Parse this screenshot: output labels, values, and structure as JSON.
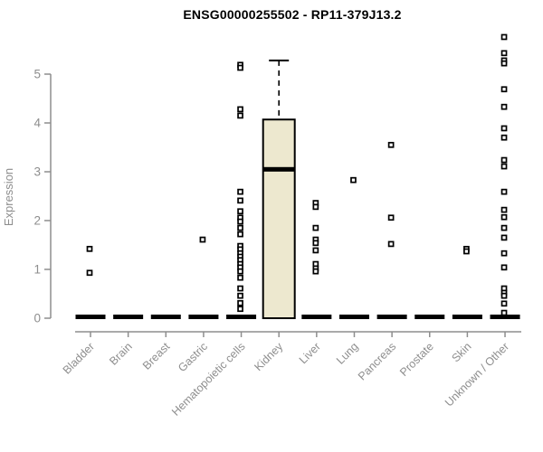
{
  "header": {
    "title": "ENSG00000255502 - RP11-379J13.2"
  },
  "chart_data": {
    "type": "boxplot",
    "title": "ENSG00000255502 - RP11-379J13.2",
    "xlabel": "",
    "ylabel": "Expression",
    "ylim": [
      0,
      5.8
    ],
    "yticks": [
      0,
      1,
      2,
      3,
      4,
      5
    ],
    "grid": false,
    "legend": "none",
    "categories": [
      "Bladder",
      "Brain",
      "Breast",
      "Gastric",
      "Hematopoietic cells",
      "Kidney",
      "Liver",
      "Lung",
      "Pancreas",
      "Prostate",
      "Skin",
      "Unknown / Other"
    ],
    "boxes": [
      {
        "category": "Bladder",
        "q1": 0,
        "median": 0,
        "q3": 0,
        "whisker_low": 0,
        "whisker_high": 0,
        "outliers": [
          1.42,
          0.93
        ]
      },
      {
        "category": "Brain",
        "q1": 0,
        "median": 0,
        "q3": 0,
        "whisker_low": 0,
        "whisker_high": 0,
        "outliers": []
      },
      {
        "category": "Breast",
        "q1": 0,
        "median": 0,
        "q3": 0,
        "whisker_low": 0,
        "whisker_high": 0,
        "outliers": []
      },
      {
        "category": "Gastric",
        "q1": 0,
        "median": 0,
        "q3": 0,
        "whisker_low": 0,
        "whisker_high": 0,
        "outliers": [
          1.61
        ]
      },
      {
        "category": "Hematopoietic cells",
        "q1": 0,
        "median": 0,
        "q3": 0,
        "whisker_low": 0,
        "whisker_high": 0,
        "outliers": [
          5.19,
          5.13,
          4.28,
          4.15,
          2.59,
          2.41,
          2.19,
          2.06,
          1.98,
          1.85,
          1.72,
          1.48,
          1.41,
          1.33,
          1.26,
          1.19,
          1.11,
          1.04,
          0.96,
          0.83,
          0.61,
          0.46,
          0.31,
          0.19
        ]
      },
      {
        "category": "Kidney",
        "q1": 0,
        "median": 3.05,
        "q3": 4.07,
        "whisker_low": 0,
        "whisker_high": 5.28,
        "outliers": []
      },
      {
        "category": "Liver",
        "q1": 0,
        "median": 0,
        "q3": 0,
        "whisker_low": 0,
        "whisker_high": 0,
        "outliers": [
          2.36,
          2.28,
          1.85,
          1.61,
          1.54,
          1.39,
          1.11,
          1.02,
          0.96
        ]
      },
      {
        "category": "Lung",
        "q1": 0,
        "median": 0,
        "q3": 0,
        "whisker_low": 0,
        "whisker_high": 0,
        "outliers": [
          2.83
        ]
      },
      {
        "category": "Pancreas",
        "q1": 0,
        "median": 0,
        "q3": 0,
        "whisker_low": 0,
        "whisker_high": 0,
        "outliers": [
          3.55,
          2.06,
          1.52
        ]
      },
      {
        "category": "Prostate",
        "q1": 0,
        "median": 0,
        "q3": 0,
        "whisker_low": 0,
        "whisker_high": 0,
        "outliers": []
      },
      {
        "category": "Skin",
        "q1": 0,
        "median": 0,
        "q3": 0,
        "whisker_low": 0,
        "whisker_high": 0,
        "outliers": [
          1.42,
          1.37
        ]
      },
      {
        "category": "Unknown / Other",
        "q1": 0,
        "median": 0,
        "q3": 0,
        "whisker_low": 0,
        "whisker_high": 0,
        "outliers": [
          5.76,
          5.43,
          5.28,
          5.22,
          4.69,
          4.33,
          3.89,
          3.7,
          3.24,
          3.11,
          2.59,
          2.22,
          2.07,
          1.85,
          1.65,
          1.33,
          1.04,
          0.61,
          0.52,
          0.46,
          0.3,
          0.11
        ]
      }
    ],
    "colors": {
      "box_fill": "#EDE8CF",
      "box_border": "#000000",
      "median": "#000000",
      "whisker": "#000000",
      "outlier": "#000000",
      "axis": "#8E8E8E",
      "title_text": "#000000",
      "background": "#FFFFFF"
    }
  }
}
